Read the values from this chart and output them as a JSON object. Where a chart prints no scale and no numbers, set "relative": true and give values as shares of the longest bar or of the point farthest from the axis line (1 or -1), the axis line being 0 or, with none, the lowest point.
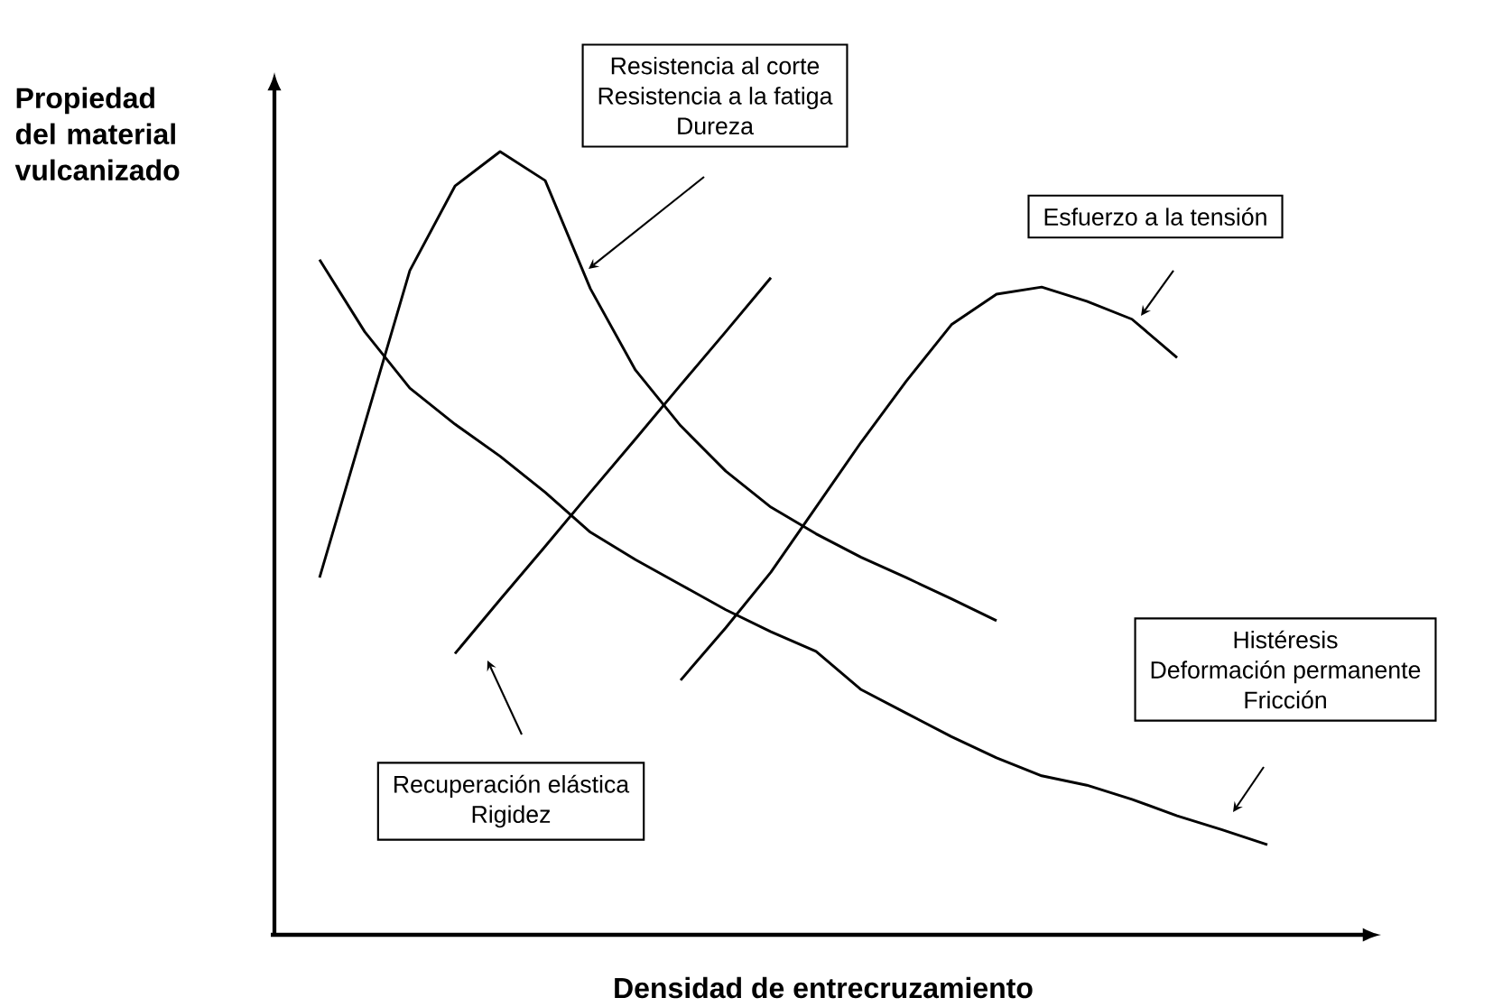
{
  "chart_data": {
    "type": "line",
    "relative": true,
    "marker": "none",
    "line_style": "solid",
    "xlabel": "Densidad de entrecruzamiento",
    "ylabel": "Propiedad del material vulcanizado",
    "categories": [
      null,
      null,
      null,
      null,
      null,
      null,
      null,
      null,
      null,
      null,
      null,
      null,
      null,
      null,
      null,
      null,
      null,
      null,
      null,
      null,
      null,
      null,
      null,
      null
    ],
    "series": [
      {
        "color": "#000000",
        "values": [
          null,
          0.456,
          0.652,
          0.848,
          0.956,
          1.0,
          0.963,
          0.825,
          0.721,
          0.65,
          0.592,
          0.546,
          0.512,
          0.482,
          0.456,
          0.429,
          0.401,
          null,
          null,
          null,
          null,
          null,
          null,
          null
        ]
      },
      {
        "color": "#000000",
        "values": [
          null,
          null,
          null,
          null,
          0.359,
          0.428,
          0.496,
          0.565,
          0.633,
          0.702,
          0.77,
          0.839,
          null,
          null,
          null,
          null,
          null,
          null,
          null,
          null,
          null,
          null,
          null,
          null
        ]
      },
      {
        "color": "#000000",
        "values": [
          null,
          null,
          null,
          null,
          null,
          null,
          null,
          null,
          null,
          0.325,
          0.392,
          0.463,
          0.546,
          0.629,
          0.707,
          0.779,
          0.818,
          0.827,
          0.809,
          0.786,
          0.737,
          null,
          null,
          null
        ]
      },
      {
        "color": "#000000",
        "values": [
          null,
          0.862,
          0.77,
          0.698,
          0.652,
          0.611,
          0.565,
          0.514,
          0.479,
          0.447,
          0.415,
          0.387,
          0.362,
          0.313,
          0.283,
          0.253,
          0.226,
          0.203,
          0.191,
          0.173,
          0.152,
          0.134,
          0.115,
          null
        ]
      }
    ],
    "annotations": [
      "Resistencia al corte",
      "Resistencia a la fatiga",
      "Dureza",
      "Esfuerzo a la tensión",
      "Recuperación elástica",
      "Rigidez",
      "Histéresis",
      "Deformación permanente",
      "Fricción"
    ]
  }
}
